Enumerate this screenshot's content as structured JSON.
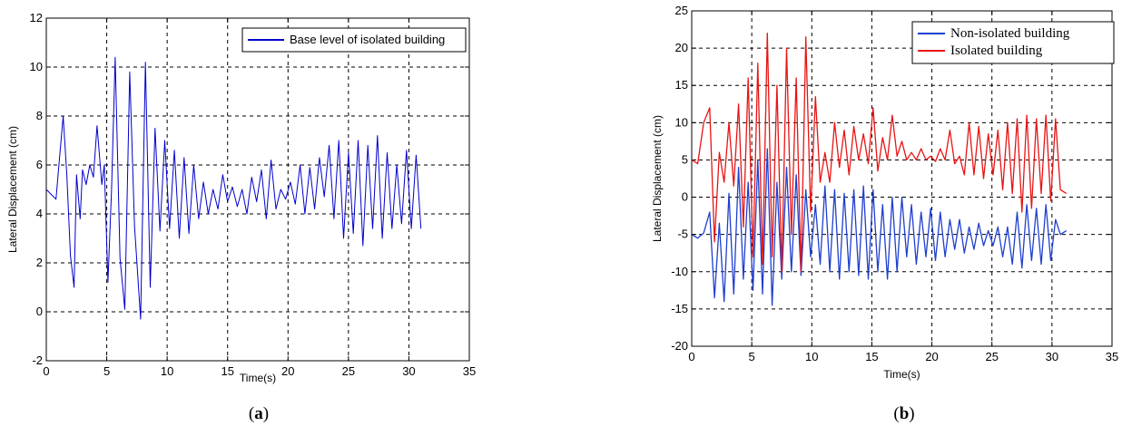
{
  "chart_data": [
    {
      "type": "line",
      "caption": "(a)",
      "xlabel": "Time(s)",
      "ylabel": "Lateral Displacement (cm)",
      "xlim": [
        0,
        35
      ],
      "ylim": [
        -2,
        12
      ],
      "xticks": [
        "0",
        "5",
        "10",
        "15",
        "20",
        "25",
        "30",
        "35"
      ],
      "yticks": [
        "-2",
        "0",
        "2",
        "4",
        "6",
        "8",
        "10",
        "12"
      ],
      "grid": true,
      "legend_position": "top-right",
      "series": [
        {
          "name": "Base level of isolated building",
          "color": "#0000cc",
          "x": [
            0,
            0.4,
            0.8,
            1.1,
            1.4,
            1.7,
            2.0,
            2.3,
            2.5,
            2.8,
            3.0,
            3.3,
            3.6,
            3.9,
            4.2,
            4.6,
            4.8,
            5.1,
            5.4,
            5.7,
            6.1,
            6.5,
            6.9,
            7.3,
            7.8,
            8.2,
            8.6,
            9.0,
            9.4,
            9.8,
            10.2,
            10.6,
            11.0,
            11.4,
            11.8,
            12.2,
            12.6,
            13.0,
            13.4,
            13.8,
            14.2,
            14.6,
            15.0,
            15.4,
            15.8,
            16.2,
            16.6,
            17.0,
            17.4,
            17.8,
            18.2,
            18.6,
            19.0,
            19.4,
            19.8,
            20.2,
            20.6,
            21.0,
            21.4,
            21.8,
            22.2,
            22.6,
            23.0,
            23.4,
            23.8,
            24.2,
            24.6,
            25.0,
            25.4,
            25.8,
            26.2,
            26.6,
            27.0,
            27.4,
            27.8,
            28.2,
            28.6,
            29.0,
            29.4,
            29.8,
            30.2,
            30.6,
            31.0
          ],
          "y": [
            5.0,
            4.8,
            4.6,
            6.3,
            8.0,
            5.6,
            2.3,
            1.0,
            5.6,
            3.8,
            5.8,
            5.2,
            6.0,
            5.5,
            7.6,
            5.2,
            6.0,
            1.2,
            5.0,
            10.4,
            2.2,
            0.1,
            9.8,
            3.5,
            -0.3,
            10.2,
            1.0,
            7.5,
            3.3,
            7.0,
            3.4,
            6.6,
            3.0,
            6.3,
            3.2,
            6.0,
            3.8,
            5.3,
            4.0,
            5.0,
            4.2,
            5.6,
            4.5,
            5.1,
            4.3,
            5.0,
            4.0,
            5.5,
            4.5,
            5.8,
            3.8,
            6.2,
            4.2,
            5.0,
            4.6,
            5.3,
            4.4,
            6.0,
            4.0,
            5.9,
            4.2,
            6.3,
            4.7,
            6.8,
            3.8,
            7.0,
            3.0,
            6.5,
            3.2,
            7.0,
            2.7,
            6.8,
            3.4,
            7.2,
            3.0,
            6.5,
            3.4,
            6.0,
            3.6,
            6.6,
            3.4,
            6.4,
            3.4
          ]
        }
      ]
    },
    {
      "type": "line",
      "caption": "(b)",
      "xlabel": "Time(s)",
      "ylabel": "Lateral Displacement (cm)",
      "xlim": [
        0,
        35
      ],
      "ylim": [
        -20,
        25
      ],
      "xticks": [
        "0",
        "5",
        "10",
        "15",
        "20",
        "25",
        "30",
        "35"
      ],
      "yticks": [
        "-20",
        "-15",
        "-10",
        "-5",
        "0",
        "5",
        "10",
        "15",
        "20",
        "25"
      ],
      "grid": true,
      "legend_position": "top-right",
      "series": [
        {
          "name": "Non-isolated building",
          "color": "#1f3fcf",
          "x": [
            0,
            0.5,
            1.0,
            1.5,
            1.9,
            2.3,
            2.7,
            3.1,
            3.5,
            3.9,
            4.3,
            4.7,
            5.1,
            5.5,
            5.9,
            6.3,
            6.7,
            7.1,
            7.5,
            7.9,
            8.3,
            8.7,
            9.1,
            9.5,
            9.9,
            10.3,
            10.7,
            11.1,
            11.5,
            11.9,
            12.3,
            12.7,
            13.1,
            13.5,
            13.9,
            14.3,
            14.7,
            15.1,
            15.5,
            15.9,
            16.3,
            16.7,
            17.1,
            17.5,
            17.9,
            18.3,
            18.7,
            19.1,
            19.5,
            19.9,
            20.3,
            20.7,
            21.1,
            21.5,
            21.9,
            22.3,
            22.7,
            23.1,
            23.5,
            23.9,
            24.3,
            24.7,
            25.1,
            25.5,
            25.9,
            26.3,
            26.7,
            27.1,
            27.5,
            27.9,
            28.3,
            28.7,
            29.1,
            29.5,
            29.9,
            30.3,
            30.7,
            31.2
          ],
          "y": [
            -5.0,
            -5.5,
            -4.8,
            -2.0,
            -13.5,
            -3.5,
            -14.0,
            0.5,
            -13.0,
            4.0,
            -11.0,
            2.0,
            -12.5,
            5.0,
            -13.0,
            6.5,
            -14.5,
            2.0,
            -11.0,
            4.0,
            -10.0,
            3.0,
            -10.5,
            1.0,
            -8.0,
            -1.0,
            -9.0,
            1.5,
            -10.0,
            1.0,
            -11.0,
            0.5,
            -10.0,
            1.0,
            -10.5,
            1.5,
            -11.0,
            1.0,
            -10.0,
            -1.0,
            -11.0,
            0.0,
            -10.0,
            0.0,
            -8.0,
            -1.0,
            -9.0,
            -2.0,
            -8.0,
            -1.5,
            -8.5,
            -2.0,
            -8.0,
            -3.0,
            -7.0,
            -3.0,
            -7.5,
            -4.0,
            -7.0,
            -3.5,
            -6.5,
            -4.5,
            -6.5,
            -4.0,
            -8.0,
            -4.0,
            -9.0,
            -2.0,
            -9.5,
            -1.0,
            -8.5,
            -1.5,
            -9.0,
            -1.0,
            -8.5,
            -3.0,
            -5.0,
            -4.5
          ]
        },
        {
          "name": "Isolated building",
          "color": "#e81414",
          "x": [
            0,
            0.5,
            1.0,
            1.5,
            1.9,
            2.3,
            2.7,
            3.1,
            3.5,
            3.9,
            4.3,
            4.7,
            5.1,
            5.5,
            5.9,
            6.3,
            6.7,
            7.1,
            7.5,
            7.9,
            8.3,
            8.7,
            9.1,
            9.5,
            9.9,
            10.3,
            10.7,
            11.1,
            11.5,
            11.9,
            12.3,
            12.7,
            13.1,
            13.5,
            13.9,
            14.3,
            14.7,
            15.1,
            15.5,
            15.9,
            16.3,
            16.7,
            17.1,
            17.5,
            17.9,
            18.3,
            18.7,
            19.1,
            19.5,
            19.9,
            20.3,
            20.7,
            21.1,
            21.5,
            21.9,
            22.3,
            22.7,
            23.1,
            23.5,
            23.9,
            24.3,
            24.7,
            25.1,
            25.5,
            25.9,
            26.3,
            26.7,
            27.1,
            27.5,
            27.9,
            28.3,
            28.7,
            29.1,
            29.5,
            29.9,
            30.3,
            30.7,
            31.2
          ],
          "y": [
            5.0,
            4.5,
            10.0,
            12.0,
            -6.0,
            6.0,
            2.0,
            10.0,
            1.5,
            12.5,
            -4.0,
            16.0,
            -8.0,
            18.0,
            -9.0,
            22.0,
            -8.0,
            15.0,
            -10.0,
            20.0,
            -5.0,
            16.0,
            -10.0,
            21.5,
            -2.0,
            13.5,
            2.0,
            6.0,
            2.0,
            10.0,
            4.0,
            9.0,
            3.0,
            9.5,
            5.0,
            8.5,
            4.5,
            12.0,
            3.5,
            8.0,
            5.0,
            11.0,
            5.5,
            7.5,
            5.0,
            6.0,
            5.0,
            6.5,
            5.0,
            5.5,
            4.8,
            6.5,
            5.0,
            9.0,
            4.5,
            5.5,
            3.0,
            10.0,
            3.0,
            9.5,
            2.5,
            8.5,
            3.0,
            9.0,
            1.0,
            10.0,
            0.5,
            10.5,
            -2.0,
            11.0,
            -1.5,
            10.5,
            0.5,
            11.0,
            -0.5,
            10.5,
            1.0,
            0.5
          ]
        }
      ]
    }
  ]
}
